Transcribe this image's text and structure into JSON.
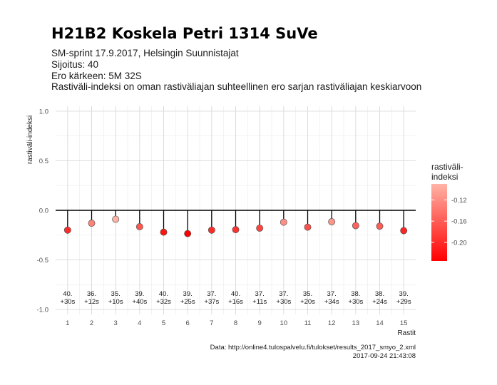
{
  "title": "H21B2 Koskela Petri 1314 SuVe",
  "subtitle_lines": [
    "SM-sprint 17.9.2017, Helsingin Suunnistajat",
    "Sijoitus: 40",
    "Ero kärkeen: 5M 32S",
    "Rastiväli-indeksi on oman rastiväliajan suhteellinen ero sarjan rastiväliajan keskiarvoon"
  ],
  "caption_lines": [
    "Data: http://online4.tulospalvelu.fi/tulokset/results_2017_smyo_2.xml",
    "2017-09-24 21:43:08"
  ],
  "legend": {
    "title_lines": [
      "rastiväli-",
      "indeksi"
    ],
    "ticks": [
      -0.12,
      -0.16,
      -0.2
    ],
    "tick_labels": [
      "-0.12",
      "-0.16",
      "-0.20"
    ],
    "range": [
      -0.235,
      -0.09
    ],
    "color_low": "#ff0000",
    "color_high": "#ffb3a6"
  },
  "chart_data": {
    "type": "scatter",
    "xlabel": "Rastit",
    "ylabel": "rastiväli-indeksi",
    "ylim": [
      -1.05,
      1.05
    ],
    "xlim": [
      0.5,
      15.5
    ],
    "yticks": [
      -1.0,
      -0.5,
      0.0,
      0.5,
      1.0
    ],
    "ytick_labels": [
      "-1.0",
      "-0.5",
      "0.0",
      "0.5",
      "1.0"
    ],
    "x": [
      1,
      2,
      3,
      4,
      5,
      6,
      7,
      8,
      9,
      10,
      11,
      12,
      13,
      14,
      15
    ],
    "xtick_labels": [
      "1",
      "2",
      "3",
      "4",
      "5",
      "6",
      "7",
      "8",
      "9",
      "10",
      "11",
      "12",
      "13",
      "14",
      "15"
    ],
    "values": [
      -0.2,
      -0.13,
      -0.09,
      -0.165,
      -0.22,
      -0.235,
      -0.2,
      -0.195,
      -0.18,
      -0.12,
      -0.17,
      -0.115,
      -0.155,
      -0.16,
      -0.205
    ],
    "point_labels": [
      [
        "40.",
        "+30s"
      ],
      [
        "36.",
        "+12s"
      ],
      [
        "35.",
        "+10s"
      ],
      [
        "39.",
        "+40s"
      ],
      [
        "40.",
        "+32s"
      ],
      [
        "39.",
        "+25s"
      ],
      [
        "37.",
        "+37s"
      ],
      [
        "40.",
        "+16s"
      ],
      [
        "37.",
        "+11s"
      ],
      [
        "37.",
        "+30s"
      ],
      [
        "35.",
        "+20s"
      ],
      [
        "37.",
        "+34s"
      ],
      [
        "38.",
        "+30s"
      ],
      [
        "38.",
        "+24s"
      ],
      [
        "39.",
        "+29s"
      ]
    ],
    "grid": true,
    "legend_position": "right"
  }
}
